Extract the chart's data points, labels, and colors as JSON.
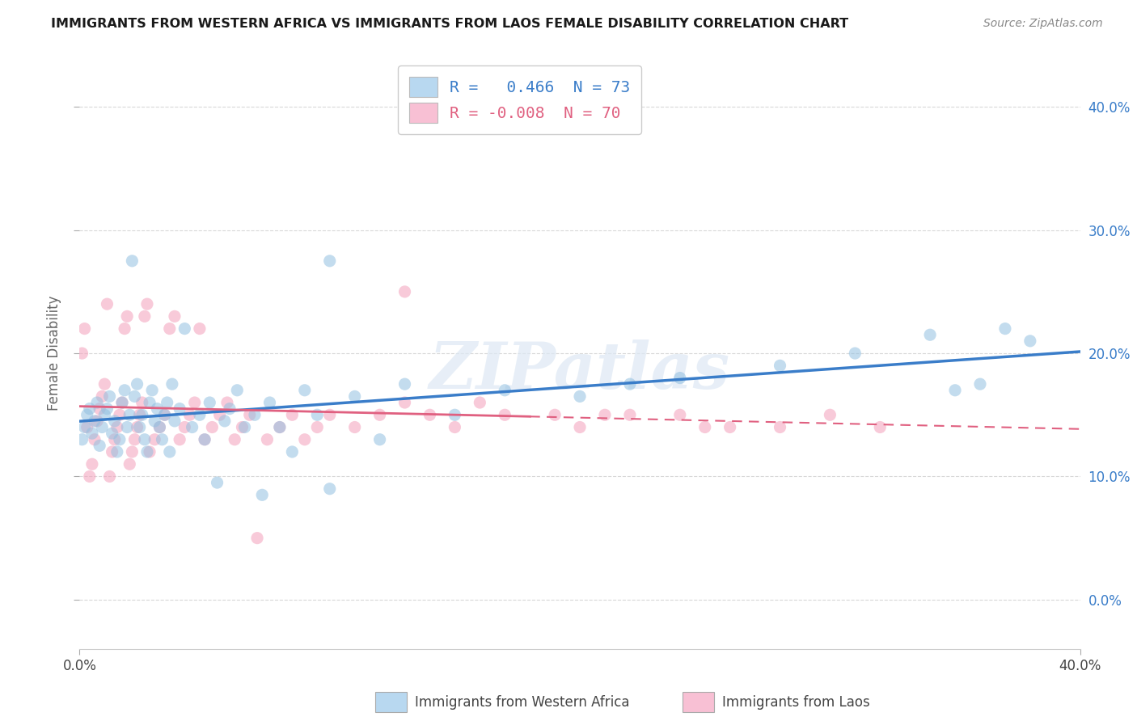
{
  "title": "IMMIGRANTS FROM WESTERN AFRICA VS IMMIGRANTS FROM LAOS FEMALE DISABILITY CORRELATION CHART",
  "source": "Source: ZipAtlas.com",
  "ylabel": "Female Disability",
  "xlim": [
    0.0,
    0.4
  ],
  "ylim": [
    -0.04,
    0.44
  ],
  "yticks": [
    0.0,
    0.1,
    0.2,
    0.3,
    0.4
  ],
  "watermark_text": "ZIPatlas",
  "legend_R1": " 0.466",
  "legend_N1": "73",
  "legend_R2": "-0.008",
  "legend_N2": "70",
  "color_blue": "#92c0e0",
  "color_blue_line": "#3a7dc9",
  "color_pink": "#f4a0bb",
  "color_pink_line": "#e06080",
  "color_blue_legend": "#b8d8f0",
  "color_pink_legend": "#f8c0d4",
  "background_color": "#ffffff",
  "grid_color": "#d8d8d8",
  "blue_scatter_x": [
    0.001,
    0.002,
    0.003,
    0.004,
    0.005,
    0.006,
    0.007,
    0.008,
    0.009,
    0.01,
    0.011,
    0.012,
    0.013,
    0.014,
    0.015,
    0.016,
    0.017,
    0.018,
    0.019,
    0.02,
    0.021,
    0.022,
    0.023,
    0.024,
    0.025,
    0.026,
    0.027,
    0.028,
    0.029,
    0.03,
    0.031,
    0.032,
    0.033,
    0.034,
    0.035,
    0.036,
    0.037,
    0.038,
    0.04,
    0.042,
    0.045,
    0.048,
    0.05,
    0.052,
    0.055,
    0.058,
    0.06,
    0.063,
    0.066,
    0.07,
    0.073,
    0.076,
    0.08,
    0.085,
    0.09,
    0.095,
    0.1,
    0.11,
    0.12,
    0.13,
    0.15,
    0.17,
    0.2,
    0.22,
    0.24,
    0.28,
    0.31,
    0.34,
    0.36,
    0.37,
    0.38,
    0.35,
    0.1
  ],
  "blue_scatter_y": [
    0.13,
    0.14,
    0.15,
    0.155,
    0.135,
    0.145,
    0.16,
    0.125,
    0.14,
    0.15,
    0.155,
    0.165,
    0.135,
    0.145,
    0.12,
    0.13,
    0.16,
    0.17,
    0.14,
    0.15,
    0.275,
    0.165,
    0.175,
    0.14,
    0.15,
    0.13,
    0.12,
    0.16,
    0.17,
    0.145,
    0.155,
    0.14,
    0.13,
    0.15,
    0.16,
    0.12,
    0.175,
    0.145,
    0.155,
    0.22,
    0.14,
    0.15,
    0.13,
    0.16,
    0.095,
    0.145,
    0.155,
    0.17,
    0.14,
    0.15,
    0.085,
    0.16,
    0.14,
    0.12,
    0.17,
    0.15,
    0.275,
    0.165,
    0.13,
    0.175,
    0.15,
    0.17,
    0.165,
    0.175,
    0.18,
    0.19,
    0.2,
    0.215,
    0.175,
    0.22,
    0.21,
    0.17,
    0.09
  ],
  "pink_scatter_x": [
    0.001,
    0.002,
    0.003,
    0.004,
    0.005,
    0.006,
    0.007,
    0.008,
    0.009,
    0.01,
    0.011,
    0.012,
    0.013,
    0.014,
    0.015,
    0.016,
    0.017,
    0.018,
    0.019,
    0.02,
    0.021,
    0.022,
    0.023,
    0.024,
    0.025,
    0.026,
    0.027,
    0.028,
    0.03,
    0.032,
    0.034,
    0.036,
    0.038,
    0.04,
    0.042,
    0.044,
    0.046,
    0.048,
    0.05,
    0.053,
    0.056,
    0.059,
    0.062,
    0.065,
    0.068,
    0.071,
    0.075,
    0.08,
    0.085,
    0.09,
    0.095,
    0.1,
    0.11,
    0.12,
    0.13,
    0.14,
    0.15,
    0.17,
    0.19,
    0.2,
    0.21,
    0.22,
    0.24,
    0.25,
    0.26,
    0.28,
    0.3,
    0.32,
    0.13,
    0.16
  ],
  "pink_scatter_y": [
    0.2,
    0.22,
    0.14,
    0.1,
    0.11,
    0.13,
    0.145,
    0.155,
    0.165,
    0.175,
    0.24,
    0.1,
    0.12,
    0.13,
    0.14,
    0.15,
    0.16,
    0.22,
    0.23,
    0.11,
    0.12,
    0.13,
    0.14,
    0.15,
    0.16,
    0.23,
    0.24,
    0.12,
    0.13,
    0.14,
    0.15,
    0.22,
    0.23,
    0.13,
    0.14,
    0.15,
    0.16,
    0.22,
    0.13,
    0.14,
    0.15,
    0.16,
    0.13,
    0.14,
    0.15,
    0.05,
    0.13,
    0.14,
    0.15,
    0.13,
    0.14,
    0.15,
    0.14,
    0.15,
    0.16,
    0.15,
    0.14,
    0.15,
    0.15,
    0.14,
    0.15,
    0.15,
    0.15,
    0.14,
    0.14,
    0.14,
    0.15,
    0.14,
    0.25,
    0.16
  ]
}
